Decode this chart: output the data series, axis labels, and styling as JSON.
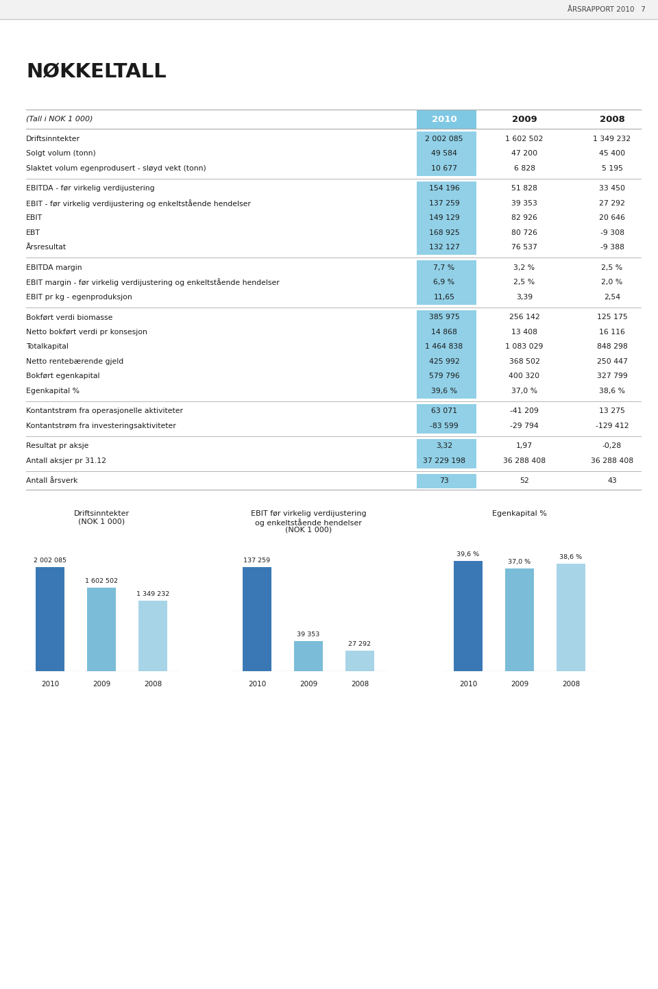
{
  "header_text": "ÅRSRAPPORT 2010   7",
  "title": "NØKKELTALL",
  "subtitle": "(Tall i NOK 1 000)",
  "col_headers": [
    "2010",
    "2009",
    "2008"
  ],
  "rows": [
    {
      "label": "Driftsinntekter",
      "vals": [
        "2 002 085",
        "1 602 502",
        "1 349 232"
      ],
      "group": 1
    },
    {
      "label": "Solgt volum (tonn)",
      "vals": [
        "49 584",
        "47 200",
        "45 400"
      ],
      "group": 1
    },
    {
      "label": "Slaktet volum egenprodusert - sløyd vekt (tonn)",
      "vals": [
        "10 677",
        "6 828",
        "5 195"
      ],
      "group": 1
    },
    {
      "label": "EBITDA - før virkelig verdijustering",
      "vals": [
        "154 196",
        "51 828",
        "33 450"
      ],
      "group": 2
    },
    {
      "label": "EBIT - før virkelig verdijustering og enkeltstående hendelser",
      "vals": [
        "137 259",
        "39 353",
        "27 292"
      ],
      "group": 2
    },
    {
      "label": "EBIT",
      "vals": [
        "149 129",
        "82 926",
        "20 646"
      ],
      "group": 2
    },
    {
      "label": "EBT",
      "vals": [
        "168 925",
        "80 726",
        "-9 308"
      ],
      "group": 2
    },
    {
      "label": "Årsresultat",
      "vals": [
        "132 127",
        "76 537",
        "-9 388"
      ],
      "group": 2
    },
    {
      "label": "EBITDA margin",
      "vals": [
        "7,7 %",
        "3,2 %",
        "2,5 %"
      ],
      "group": 3
    },
    {
      "label": "EBIT margin - før virkelig verdijustering og enkeltstående hendelser",
      "vals": [
        "6,9 %",
        "2,5 %",
        "2,0 %"
      ],
      "group": 3
    },
    {
      "label": "EBIT pr kg - egenproduksjon",
      "vals": [
        "11,65",
        "3,39",
        "2,54"
      ],
      "group": 3
    },
    {
      "label": "Bokført verdi biomasse",
      "vals": [
        "385 975",
        "256 142",
        "125 175"
      ],
      "group": 4
    },
    {
      "label": "Netto bokført verdi pr konsesjon",
      "vals": [
        "14 868",
        "13 408",
        "16 116"
      ],
      "group": 4
    },
    {
      "label": "Totalkapital",
      "vals": [
        "1 464 838",
        "1 083 029",
        "848 298"
      ],
      "group": 4
    },
    {
      "label": "Netto rentebærende gjeld",
      "vals": [
        "425 992",
        "368 502",
        "250 447"
      ],
      "group": 4
    },
    {
      "label": "Bokført egenkapital",
      "vals": [
        "579 796",
        "400 320",
        "327 799"
      ],
      "group": 4
    },
    {
      "label": "Egenkapital %",
      "vals": [
        "39,6 %",
        "37,0 %",
        "38,6 %"
      ],
      "group": 4
    },
    {
      "label": "Kontantstrøm fra operasjonelle aktiviteter",
      "vals": [
        "63 071",
        "-41 209",
        "13 275"
      ],
      "group": 5
    },
    {
      "label": "Kontantstrøm fra investeringsaktiviteter",
      "vals": [
        "-83 599",
        "-29 794",
        "-129 412"
      ],
      "group": 5
    },
    {
      "label": "Resultat pr aksje",
      "vals": [
        "3,32",
        "1,97",
        "-0,28"
      ],
      "group": 6
    },
    {
      "label": "Antall aksjer pr 31.12",
      "vals": [
        "37 229 198",
        "36 288 408",
        "36 288 408"
      ],
      "group": 6
    },
    {
      "label": "Antall årsverk",
      "vals": [
        "73",
        "52",
        "43"
      ],
      "group": 7
    }
  ],
  "bar_chart1": {
    "title_line1": "Driftsinntekter",
    "title_line2": "(NOK 1 000)",
    "years": [
      "2010",
      "2009",
      "2008"
    ],
    "values": [
      2002085,
      1602502,
      1349232
    ],
    "labels": [
      "2 002 085",
      "1 602 502",
      "1 349 232"
    ],
    "colors": [
      "#3A78B5",
      "#7BBDD8",
      "#A8D4E8"
    ]
  },
  "bar_chart2": {
    "title_line1": "EBIT før virkelig verdijustering",
    "title_line2": "og enkeltstående hendelser",
    "title_line3": "(NOK 1 000)",
    "years": [
      "2010",
      "2009",
      "2008"
    ],
    "values": [
      137259,
      39353,
      27292
    ],
    "labels": [
      "137 259",
      "39 353",
      "27 292"
    ],
    "colors": [
      "#3A78B5",
      "#7BBDD8",
      "#A8D4E8"
    ]
  },
  "bar_chart3": {
    "title_line1": "Egenkapital %",
    "years": [
      "2010",
      "2009",
      "2008"
    ],
    "values": [
      39.6,
      37.0,
      38.6
    ],
    "labels": [
      "39,6 %",
      "37,0 %",
      "38,6 %"
    ],
    "colors": [
      "#3A78B5",
      "#7BBDD8",
      "#A8D4E8"
    ]
  },
  "highlight_color": "#7EC8E3",
  "text_color": "#1a1a1a",
  "sep_color": "#aaaaaa",
  "page_bg": "#ffffff"
}
